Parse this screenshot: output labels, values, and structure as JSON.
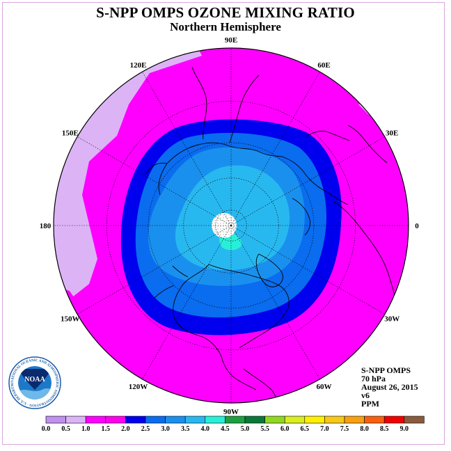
{
  "header": {
    "title": "S-NPP OMPS OZONE MIXING RATIO",
    "subtitle": "Northern Hemisphere"
  },
  "map": {
    "longitude_labels": [
      {
        "lon": 90,
        "text": "90E"
      },
      {
        "lon": 60,
        "text": "60E"
      },
      {
        "lon": 30,
        "text": "30E"
      },
      {
        "lon": 0,
        "text": "0"
      },
      {
        "lon": -30,
        "text": "30W"
      },
      {
        "lon": -60,
        "text": "60W"
      },
      {
        "lon": -90,
        "text": "90W"
      },
      {
        "lon": -120,
        "text": "120W"
      },
      {
        "lon": -150,
        "text": "150W"
      },
      {
        "lon": 180,
        "text": "180"
      },
      {
        "lon": 150,
        "text": "150E"
      },
      {
        "lon": 120,
        "text": "120E"
      }
    ]
  },
  "info": {
    "instrument": "S-NPP OMPS",
    "level": "70 hPa",
    "date": "August 26, 2015",
    "version": "v6",
    "units": "PPM"
  },
  "legend": {
    "ticks": [
      "0.0",
      "0.5",
      "1.0",
      "1.5",
      "2.0",
      "2.5",
      "3.0",
      "3.5",
      "4.0",
      "4.5",
      "5.0",
      "5.5",
      "6.0",
      "6.5",
      "7.0",
      "7.5",
      "8.0",
      "8.5",
      "9.0"
    ],
    "colors": [
      "#c090ee",
      "#dcb4f6",
      "#ff00ff",
      "#ff00ee",
      "#0000ee",
      "#0a6cee",
      "#1a90ee",
      "#28b8f0",
      "#28f0d8",
      "#1ea040",
      "#0a7838",
      "#90d820",
      "#d8ee20",
      "#fff000",
      "#f8c818",
      "#f8a010",
      "#f86010",
      "#f00000",
      "#8b5a3c"
    ]
  },
  "logo": {
    "text": "NOAA",
    "ring_text": "NATIONAL OCEANIC AND ATMOSPHERIC ADMINISTRATION · U.S. DEPARTMENT OF COMMERCE"
  }
}
